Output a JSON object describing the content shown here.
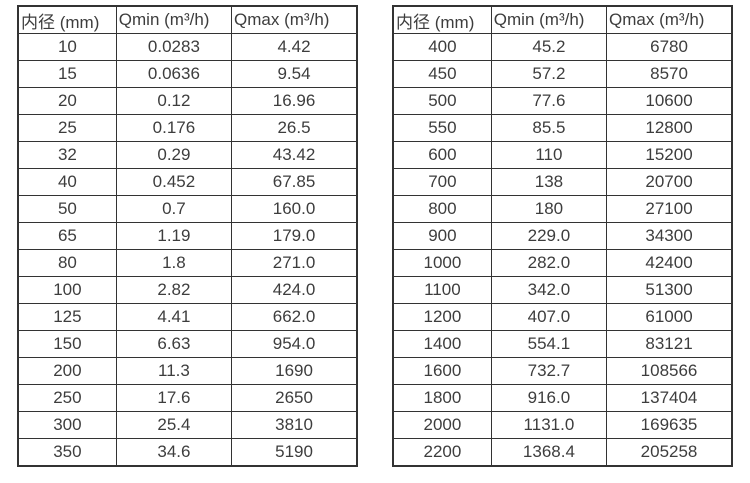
{
  "page": {
    "background_color": "#ffffff",
    "text_color": "#3d3d3d",
    "border_color": "#333333"
  },
  "tables": [
    {
      "name": "flow-table-small-diameters",
      "headers": [
        "内径 (mm)",
        "Qmin (m³/h)",
        "Qmax (m³/h)"
      ],
      "rows": [
        [
          "10",
          "0.0283",
          "4.42"
        ],
        [
          "15",
          "0.0636",
          "9.54"
        ],
        [
          "20",
          "0.12",
          "16.96"
        ],
        [
          "25",
          "0.176",
          "26.5"
        ],
        [
          "32",
          "0.29",
          "43.42"
        ],
        [
          "40",
          "0.452",
          "67.85"
        ],
        [
          "50",
          "0.7",
          "160.0"
        ],
        [
          "65",
          "1.19",
          "179.0"
        ],
        [
          "80",
          "1.8",
          "271.0"
        ],
        [
          "100",
          "2.82",
          "424.0"
        ],
        [
          "125",
          "4.41",
          "662.0"
        ],
        [
          "150",
          "6.63",
          "954.0"
        ],
        [
          "200",
          "11.3",
          "1690"
        ],
        [
          "250",
          "17.6",
          "2650"
        ],
        [
          "300",
          "25.4",
          "3810"
        ],
        [
          "350",
          "34.6",
          "5190"
        ]
      ]
    },
    {
      "name": "flow-table-large-diameters",
      "headers": [
        "内径 (mm)",
        "Qmin (m³/h)",
        "Qmax (m³/h)"
      ],
      "rows": [
        [
          "400",
          "45.2",
          "6780"
        ],
        [
          "450",
          "57.2",
          "8570"
        ],
        [
          "500",
          "77.6",
          "10600"
        ],
        [
          "550",
          "85.5",
          "12800"
        ],
        [
          "600",
          "110",
          "15200"
        ],
        [
          "700",
          "138",
          "20700"
        ],
        [
          "800",
          "180",
          "27100"
        ],
        [
          "900",
          "229.0",
          "34300"
        ],
        [
          "1000",
          "282.0",
          "42400"
        ],
        [
          "1100",
          "342.0",
          "51300"
        ],
        [
          "1200",
          "407.0",
          "61000"
        ],
        [
          "1400",
          "554.1",
          "83121"
        ],
        [
          "1600",
          "732.7",
          "108566"
        ],
        [
          "1800",
          "916.0",
          "137404"
        ],
        [
          "2000",
          "1131.0",
          "169635"
        ],
        [
          "2200",
          "1368.4",
          "205258"
        ]
      ]
    }
  ]
}
